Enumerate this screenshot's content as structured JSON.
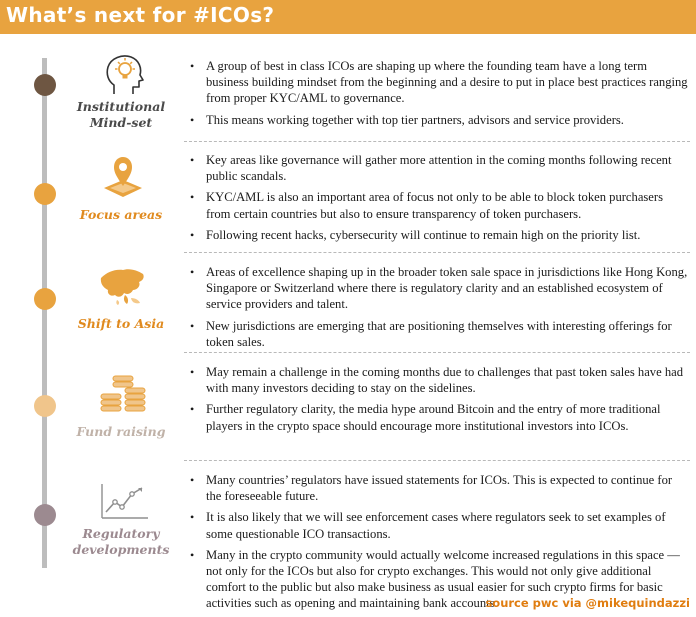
{
  "header": {
    "title": "What’s next for #ICOs?"
  },
  "colors": {
    "accent": "#e8a33f",
    "dot_brown": "#6e5642",
    "dot_orange": "#e8a33f",
    "dot_pale": "#f0c58b",
    "dot_mauve": "#9c8a90",
    "label_dark": "#4a4a4a",
    "label_orange": "#e08a1e",
    "label_pale": "#c0b2a8"
  },
  "sections": [
    {
      "label_line1": "Institutional",
      "label_line2": "Mind-set",
      "icon": "head-with-lightbulb-icon",
      "bullets": [
        "A group of best in class ICOs are shaping up where the founding team have a long term business building mindset from the beginning and a desire to put in place best practices ranging from proper KYC/AML to governance.",
        "This means working together with top tier partners, advisors and service providers."
      ]
    },
    {
      "label_line1": "Focus areas",
      "label_line2": "",
      "icon": "map-pin-icon",
      "bullets": [
        "Key areas like governance will gather more attention in the coming months following recent public scandals.",
        "KYC/AML is also an important area of focus not only to be able to block token purchasers from certain countries but also to ensure transparency of token purchasers.",
        "Following recent hacks, cybersecurity will continue to remain high on the priority list."
      ]
    },
    {
      "label_line1": "Shift to Asia",
      "label_line2": "",
      "icon": "asia-map-icon",
      "bullets": [
        "Areas of excellence shaping up in the broader token sale space in jurisdictions like Hong Kong, Singapore or Switzerland where there is regulatory clarity and an established ecosystem of service providers and talent.",
        "New jurisdictions are emerging that are positioning themselves with interesting offerings for token sales."
      ]
    },
    {
      "label_line1": "Fund raising",
      "label_line2": "",
      "icon": "coin-stack-icon",
      "bullets": [
        "May remain a challenge in the coming months due to challenges that past token sales have had with many investors deciding to stay on the sidelines.",
        "Further regulatory clarity, the media hype around Bitcoin and the entry of more traditional players in the crypto space should encourage more institutional investors into ICOs."
      ]
    },
    {
      "label_line1": "Regulatory",
      "label_line2": "developments",
      "icon": "trend-line-chart-icon",
      "bullets": [
        "Many countries’ regulators have issued statements for ICOs. This is expected to continue for the foreseeable future.",
        "It is also likely that we will see enforcement cases where regulators seek to set examples of some questionable ICO transactions.",
        "Many in the crypto community would actually welcome increased regulations in this space — not only for the ICOs but also for crypto exchanges. This would not only give additional comfort to the public but also make business as usual easier for such crypto firms for basic activities such as opening and maintaining bank accounts."
      ]
    }
  ],
  "footer": {
    "source": "source pwc via @mikequindazzi"
  }
}
